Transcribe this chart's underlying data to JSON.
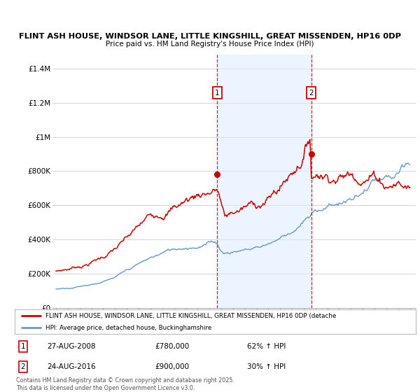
{
  "title_line1": "FLINT ASH HOUSE, WINDSOR LANE, LITTLE KINGSHILL, GREAT MISSENDEN, HP16 0DP",
  "title_line2": "Price paid vs. HM Land Registry's House Price Index (HPI)",
  "ylabel_ticks": [
    "£0",
    "£200K",
    "£400K",
    "£600K",
    "£800K",
    "£1M",
    "£1.2M",
    "£1.4M"
  ],
  "ytick_values": [
    0,
    200000,
    400000,
    600000,
    800000,
    1000000,
    1200000,
    1400000
  ],
  "ylim": [
    0,
    1480000
  ],
  "xlim_start": 1994.7,
  "xlim_end": 2025.5,
  "xticks": [
    1995,
    1996,
    1997,
    1998,
    1999,
    2000,
    2001,
    2002,
    2003,
    2004,
    2005,
    2006,
    2007,
    2008,
    2009,
    2010,
    2011,
    2012,
    2013,
    2014,
    2015,
    2016,
    2017,
    2018,
    2019,
    2020,
    2021,
    2022,
    2023,
    2024,
    2025
  ],
  "marker1_x": 2008.65,
  "marker1_y": 780000,
  "marker1_label": "1",
  "marker1_date": "27-AUG-2008",
  "marker1_price": "£780,000",
  "marker1_hpi": "62% ↑ HPI",
  "marker2_x": 2016.65,
  "marker2_y": 900000,
  "marker2_label": "2",
  "marker2_date": "24-AUG-2016",
  "marker2_price": "£900,000",
  "marker2_hpi": "30% ↑ HPI",
  "line1_color": "#cc0000",
  "line2_color": "#6699cc",
  "vline_color": "#cc0000",
  "background_color": "#ffffff",
  "grid_color": "#cccccc",
  "legend_line1": "FLINT ASH HOUSE, WINDSOR LANE, LITTLE KINGSHILL, GREAT MISSENDEN, HP16 0DP (detache",
  "legend_line2": "HPI: Average price, detached house, Buckinghamshire",
  "footnote": "Contains HM Land Registry data © Crown copyright and database right 2025.\nThis data is licensed under the Open Government Licence v3.0.",
  "shade_color": "#ddeeff",
  "shade_alpha": 0.55
}
